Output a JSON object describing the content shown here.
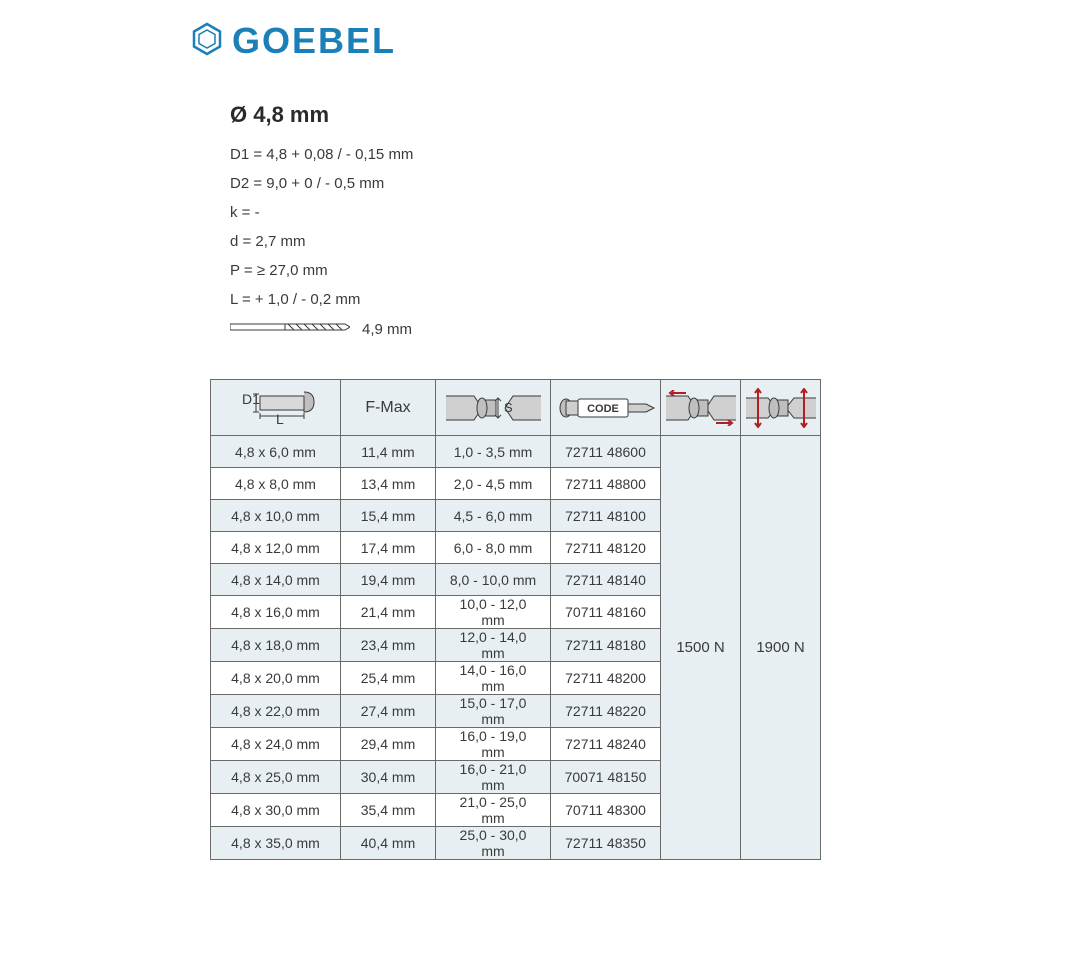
{
  "logo": {
    "text": "GOEBEL",
    "color": "#1b7fb8"
  },
  "specs": {
    "title": "Ø 4,8 mm",
    "lines": [
      "D1 = 4,8 + 0,08 / - 0,15 mm",
      "D2 = 9,0 + 0 / - 0,5 mm",
      "k = -",
      "d = 2,7 mm",
      "P = ≥ 27,0 mm",
      "L = + 1,0 / - 0,2 mm"
    ],
    "drill_label": "4,9 mm"
  },
  "table": {
    "headers": {
      "fmax": "F-Max"
    },
    "columns": {
      "dim_width": 130,
      "fmax_width": 95,
      "grip_width": 115,
      "code_width": 110,
      "shear_width": 80,
      "tensile_width": 80
    },
    "shear_value": "1500 N",
    "tensile_value": "1900 N",
    "rows": [
      {
        "dim": "4,8 x 6,0 mm",
        "fmax": "11,4 mm",
        "grip": "1,0 - 3,5 mm",
        "code": "72711 48600"
      },
      {
        "dim": "4,8 x 8,0 mm",
        "fmax": "13,4 mm",
        "grip": "2,0 - 4,5 mm",
        "code": "72711 48800"
      },
      {
        "dim": "4,8 x 10,0 mm",
        "fmax": "15,4 mm",
        "grip": "4,5 - 6,0 mm",
        "code": "72711 48100"
      },
      {
        "dim": "4,8 x 12,0 mm",
        "fmax": "17,4 mm",
        "grip": "6,0 - 8,0 mm",
        "code": "72711 48120"
      },
      {
        "dim": "4,8 x 14,0 mm",
        "fmax": "19,4 mm",
        "grip": "8,0 - 10,0 mm",
        "code": "72711 48140"
      },
      {
        "dim": "4,8 x 16,0 mm",
        "fmax": "21,4 mm",
        "grip": "10,0 - 12,0 mm",
        "code": "70711 48160"
      },
      {
        "dim": "4,8 x 18,0 mm",
        "fmax": "23,4 mm",
        "grip": "12,0 - 14,0 mm",
        "code": "72711 48180"
      },
      {
        "dim": "4,8 x 20,0 mm",
        "fmax": "25,4 mm",
        "grip": "14,0 - 16,0 mm",
        "code": "72711 48200"
      },
      {
        "dim": "4,8 x 22,0 mm",
        "fmax": "27,4 mm",
        "grip": "15,0 - 17,0 mm",
        "code": "72711 48220"
      },
      {
        "dim": "4,8 x 24,0 mm",
        "fmax": "29,4 mm",
        "grip": "16,0 - 19,0 mm",
        "code": "72711 48240"
      },
      {
        "dim": "4,8 x 25,0 mm",
        "fmax": "30,4 mm",
        "grip": "16,0 - 21,0 mm",
        "code": "70071 48150"
      },
      {
        "dim": "4,8 x 30,0 mm",
        "fmax": "35,4 mm",
        "grip": "21,0 - 25,0 mm",
        "code": "70711 48300"
      },
      {
        "dim": "4,8 x 35,0 mm",
        "fmax": "40,4 mm",
        "grip": "25,0 - 30,0 mm",
        "code": "72711 48350"
      }
    ]
  },
  "style": {
    "row_odd_bg": "#e8eff3",
    "row_even_bg": "#ffffff",
    "border_color": "#6a6a6a",
    "text_color": "#3a3a3a",
    "body_fontsize": 14,
    "title_fontsize": 22,
    "spec_fontsize": 15
  }
}
